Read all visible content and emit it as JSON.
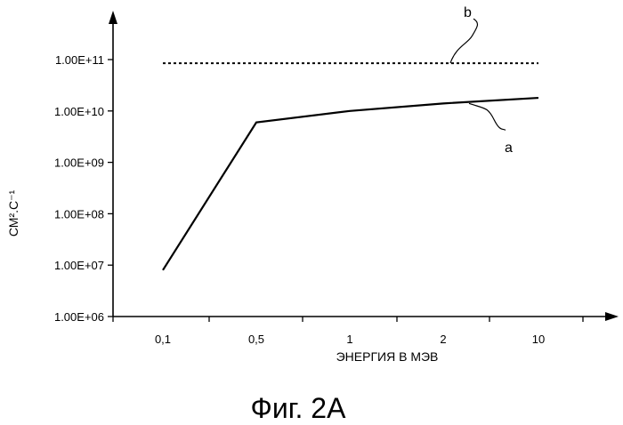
{
  "figure_caption": "Фиг. 2A",
  "chart_data": {
    "type": "line",
    "title": "",
    "xlabel": "ЭНЕРГИЯ В МЭВ",
    "ylabel": "СМ².С⁻¹",
    "y_scale": "log",
    "ylim": [
      1000000,
      100000000000
    ],
    "y_ticks": [
      "1.00E+06",
      "1.00E+07",
      "1.00E+08",
      "1.00E+09",
      "1.00E+10",
      "1.00E+11"
    ],
    "categories": [
      "0,1",
      "0,5",
      "1",
      "2",
      "10"
    ],
    "grid": false,
    "series": [
      {
        "name": "a",
        "style": "solid",
        "points": [
          {
            "x": "0,1",
            "y": 8000000
          },
          {
            "x": "0,5",
            "y": 6000000000
          },
          {
            "x": "1",
            "y": 10000000000
          },
          {
            "x": "2",
            "y": 14000000000
          },
          {
            "x": "10",
            "y": 18000000000
          }
        ]
      },
      {
        "name": "b",
        "style": "dotted",
        "points": [
          {
            "x": "0,1",
            "y": 85000000000
          },
          {
            "x": "10",
            "y": 85000000000
          }
        ]
      }
    ]
  }
}
